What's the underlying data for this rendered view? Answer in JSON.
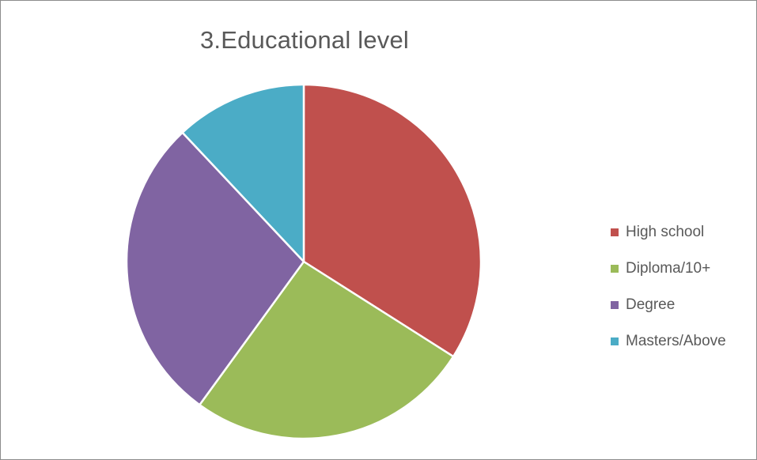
{
  "chart_data": {
    "type": "pie",
    "title": "3.Educational level",
    "categories": [
      "High school",
      "Diploma/10+",
      "Degree",
      "Masters/Above"
    ],
    "values": [
      34,
      26,
      28,
      12
    ],
    "colors": [
      "#c0504d",
      "#9bbb59",
      "#8064a2",
      "#4bacc6"
    ],
    "start_angle_deg": 0,
    "direction": "clockwise",
    "legend_position": "right",
    "grid": false
  }
}
